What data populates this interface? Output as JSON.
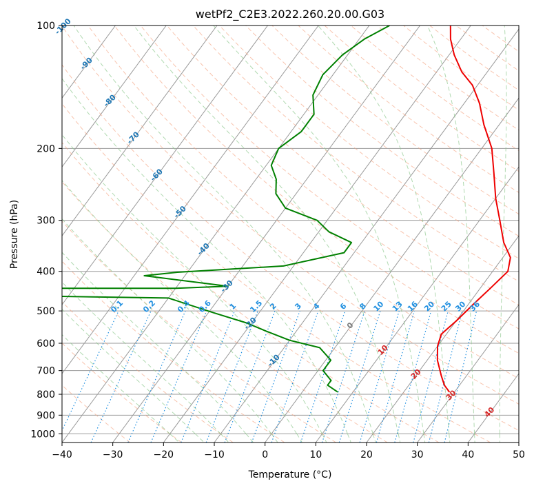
{
  "chart_data": {
    "type": "skew-t",
    "title": "wetPf2_C2E3.2022.260.20.00.G03",
    "xlabel": "Temperature (°C)",
    "ylabel": "Pressure (hPa)",
    "xlim": [
      -40,
      50
    ],
    "ylim": [
      1050,
      100
    ],
    "x_ticks": [
      -40,
      -30,
      -20,
      -10,
      0,
      10,
      20,
      30,
      40,
      50
    ],
    "y_ticks": [
      100,
      200,
      300,
      400,
      500,
      600,
      700,
      800,
      900,
      1000
    ],
    "colors": {
      "temperature": "#ee0000",
      "dewpoint": "#008000",
      "isotherm": "#999999",
      "dry_adiabat": "#f4a582",
      "moist_adiabat": "#8fc98f",
      "mixing_ratio": "#1f8fe0",
      "isotherm_label_neg": "#1f77b4",
      "isotherm_label_pos": "#d62728",
      "isotherm_label_zero": "#7f7f7f"
    },
    "series": [
      {
        "name": "Temperature",
        "points": [
          [
            29,
            790
          ],
          [
            27,
            760
          ],
          [
            25,
            720
          ],
          [
            22,
            660
          ],
          [
            20,
            610
          ],
          [
            19,
            570
          ],
          [
            20,
            530
          ],
          [
            21,
            480
          ],
          [
            22,
            440
          ],
          [
            23,
            400
          ],
          [
            21.5,
            370
          ],
          [
            18,
            340
          ],
          [
            14,
            300
          ],
          [
            10,
            265
          ],
          [
            6,
            230
          ],
          [
            2,
            200
          ],
          [
            -3,
            175
          ],
          [
            -7,
            155
          ],
          [
            -11,
            140
          ],
          [
            -15,
            130
          ],
          [
            -19,
            118
          ],
          [
            -22,
            108
          ],
          [
            -24,
            100
          ]
        ]
      },
      {
        "name": "Dewpoint",
        "points": [
          [
            7,
            790
          ],
          [
            4,
            760
          ],
          [
            4,
            740
          ],
          [
            1,
            700
          ],
          [
            1,
            660
          ],
          [
            -3,
            615
          ],
          [
            -10,
            590
          ],
          [
            -16,
            560
          ],
          [
            -21,
            535
          ],
          [
            -29,
            505
          ],
          [
            -40,
            465
          ],
          [
            -90,
            455
          ],
          [
            -90,
            440
          ],
          [
            -40,
            440
          ],
          [
            -30,
            435
          ],
          [
            -48,
            410
          ],
          [
            -42,
            402
          ],
          [
            -22,
            388
          ],
          [
            -12,
            360
          ],
          [
            -12,
            340
          ],
          [
            -18,
            320
          ],
          [
            -22,
            300
          ],
          [
            -30,
            280
          ],
          [
            -34,
            258
          ],
          [
            -36,
            238
          ],
          [
            -39,
            220
          ],
          [
            -40,
            200
          ],
          [
            -38,
            182
          ],
          [
            -38,
            165
          ],
          [
            -41,
            148
          ],
          [
            -42,
            132
          ],
          [
            -41,
            118
          ],
          [
            -39,
            108
          ],
          [
            -36,
            100
          ]
        ]
      }
    ],
    "isotherm_labels": [
      "-100",
      "-90",
      "-80",
      "-70",
      "-60",
      "-50",
      "-40",
      "-30",
      "-20",
      "-10",
      "0",
      "10",
      "20",
      "30",
      "40"
    ],
    "mixing_ratio_labels": [
      "0.1",
      "0.2",
      "0.4",
      "0.6",
      "1",
      "1.5",
      "2",
      "3",
      "4",
      "6",
      "8",
      "10",
      "13",
      "16",
      "20",
      "25",
      "30",
      "36"
    ]
  }
}
